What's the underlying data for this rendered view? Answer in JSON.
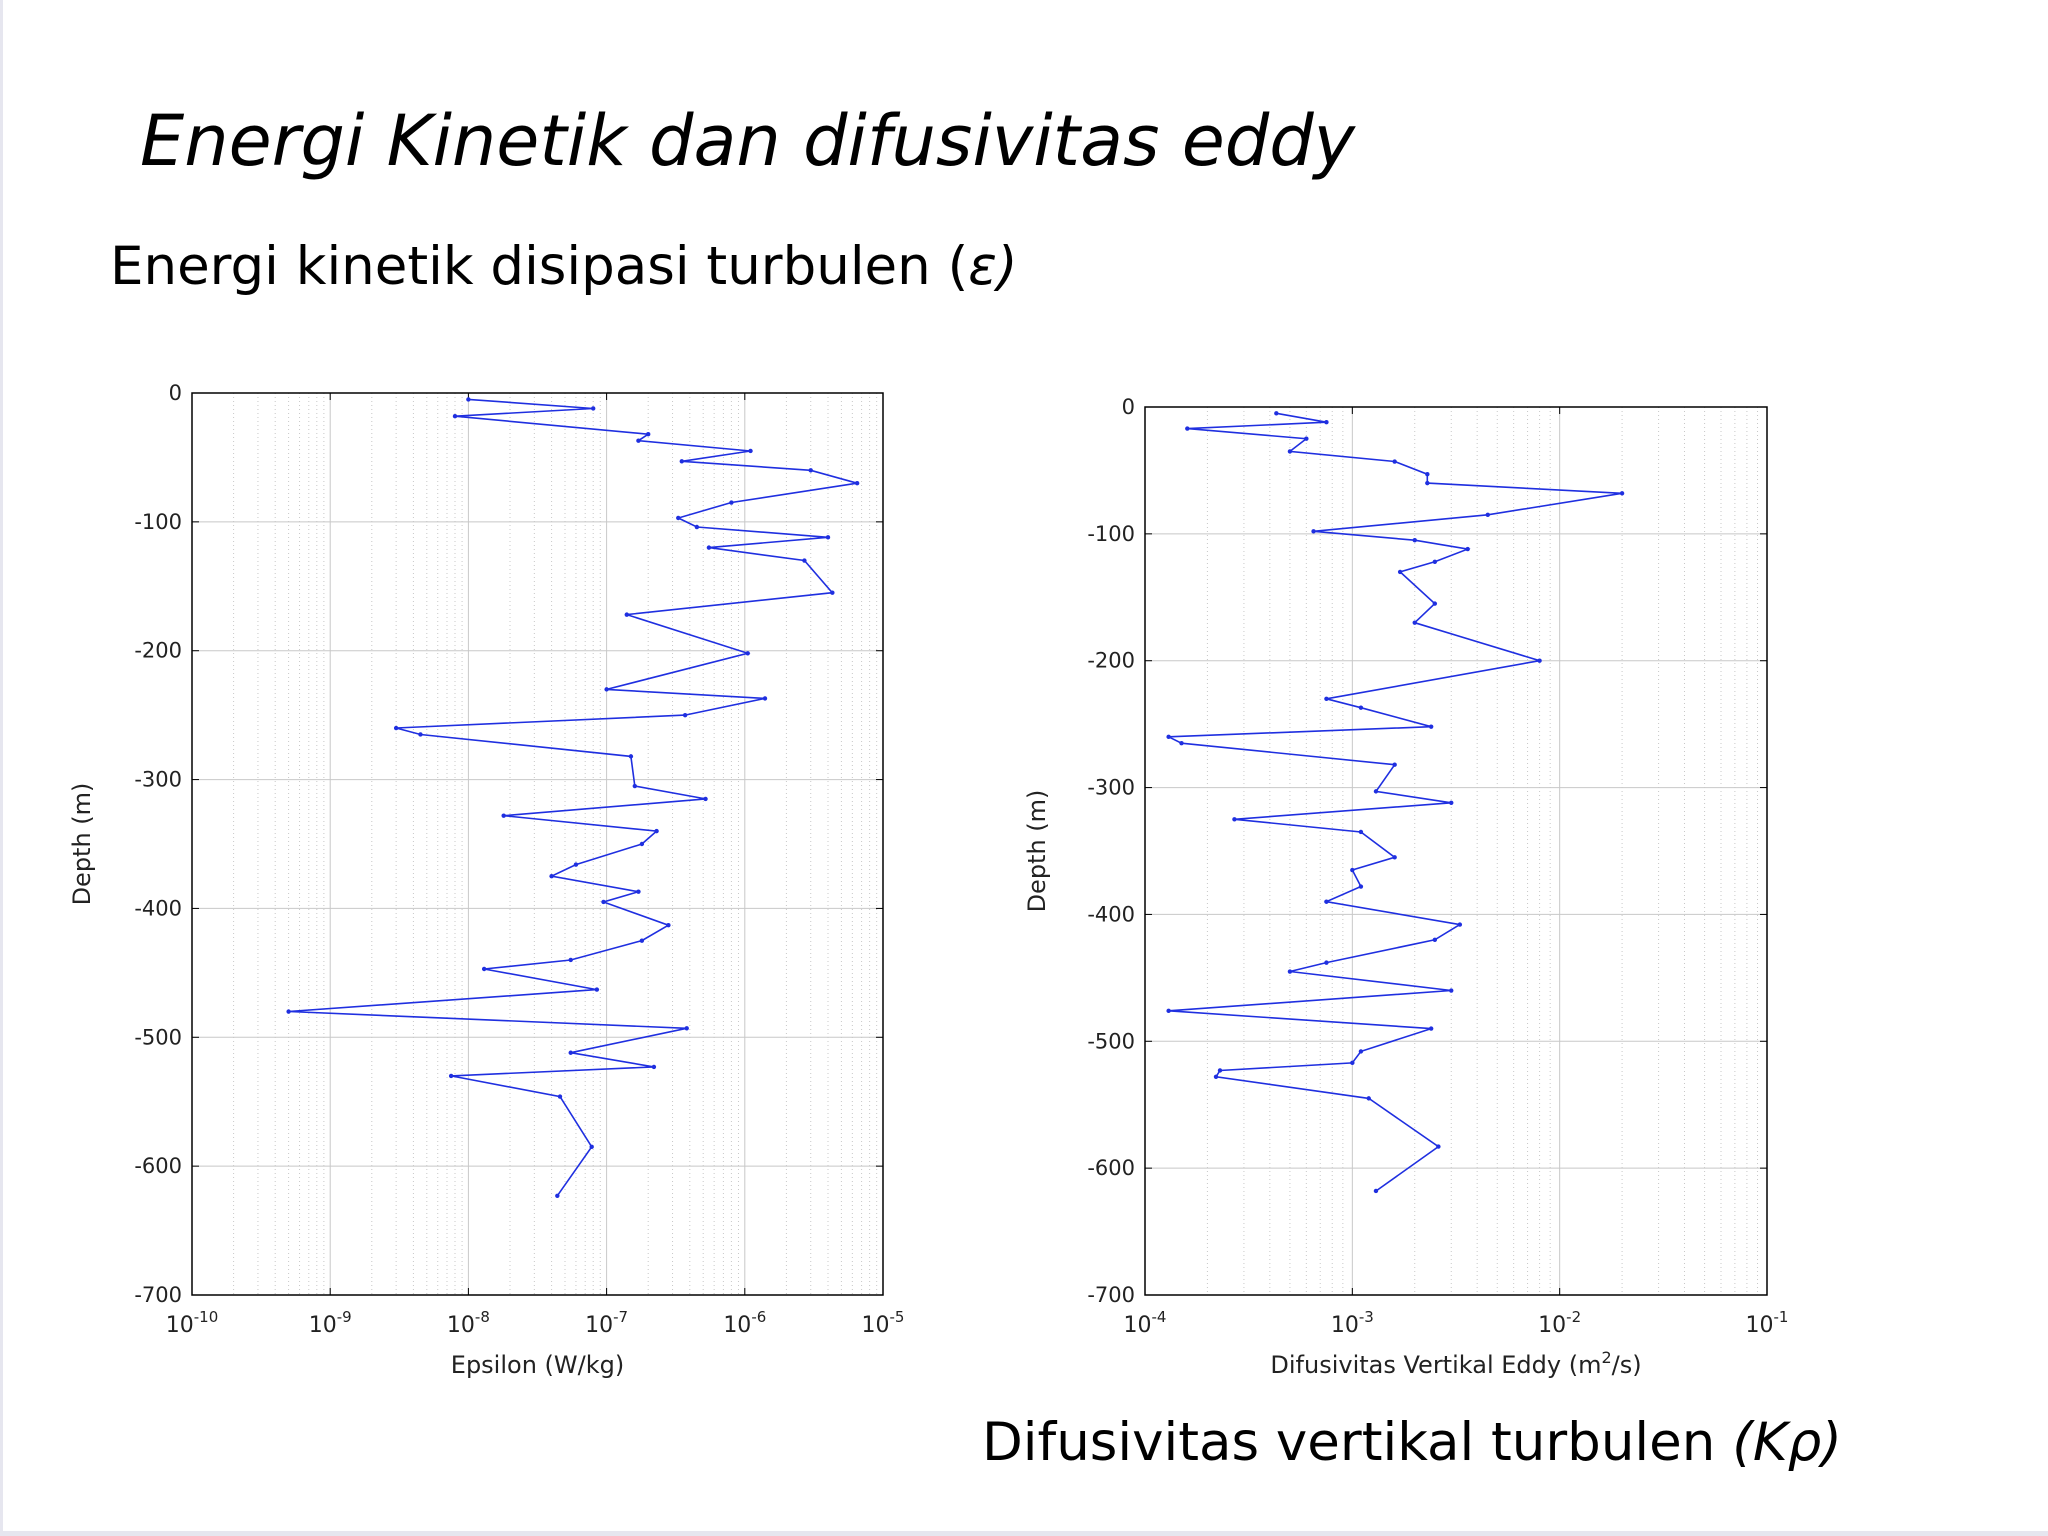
{
  "slide": {
    "title": "Energi Kinetik dan difusivitas eddy",
    "subtitle_text": "Energi kinetik disipasi turbulen (",
    "subtitle_symbol": "ε)",
    "caption_text": "Difusivitas vertikal  turbulen ",
    "caption_symbol": "(Kρ)"
  },
  "colors": {
    "line": "#1f2fe0",
    "axis": "#000000",
    "grid": "#c8c8c8"
  },
  "chart_data": [
    {
      "type": "line",
      "xscale": "log",
      "xlabel": "Epsilon (W/kg)",
      "ylabel": "Depth (m)",
      "xlim": [
        1e-10,
        1e-05
      ],
      "ylim": [
        -700,
        0
      ],
      "xticks": [
        1e-10,
        1e-09,
        1e-08,
        1e-07,
        1e-06,
        1e-05
      ],
      "xtick_labels": [
        {
          "base": "10",
          "exp": "-10"
        },
        {
          "base": "10",
          "exp": "-9"
        },
        {
          "base": "10",
          "exp": "-8"
        },
        {
          "base": "10",
          "exp": "-7"
        },
        {
          "base": "10",
          "exp": "-6"
        },
        {
          "base": "10",
          "exp": "-5"
        }
      ],
      "yticks": [
        0,
        -100,
        -200,
        -300,
        -400,
        -500,
        -600,
        -700
      ],
      "ytick_labels": [
        "0",
        "-100",
        "-200",
        "-300",
        "-400",
        "-500",
        "-600",
        "-700"
      ],
      "grid": true,
      "series": [
        {
          "points": [
            [
              1e-08,
              -5
            ],
            [
              8e-08,
              -12
            ],
            [
              8e-09,
              -18
            ],
            [
              2e-07,
              -32
            ],
            [
              1.7e-07,
              -37
            ],
            [
              1.1e-06,
              -45
            ],
            [
              3.5e-07,
              -53
            ],
            [
              3e-06,
              -60
            ],
            [
              6.5e-06,
              -70
            ],
            [
              8e-07,
              -85
            ],
            [
              3.3e-07,
              -97
            ],
            [
              4.5e-07,
              -104
            ],
            [
              4e-06,
              -112
            ],
            [
              5.5e-07,
              -120
            ],
            [
              2.7e-06,
              -130
            ],
            [
              4.3e-06,
              -155
            ],
            [
              1.4e-07,
              -172
            ],
            [
              1.05e-06,
              -202
            ],
            [
              1e-07,
              -230
            ],
            [
              1.4e-06,
              -237
            ],
            [
              3.7e-07,
              -250
            ],
            [
              3e-09,
              -260
            ],
            [
              4.5e-09,
              -265
            ],
            [
              1.5e-07,
              -282
            ],
            [
              1.6e-07,
              -305
            ],
            [
              5.2e-07,
              -315
            ],
            [
              1.8e-08,
              -328
            ],
            [
              2.3e-07,
              -340
            ],
            [
              1.8e-07,
              -350
            ],
            [
              6e-08,
              -366
            ],
            [
              4e-08,
              -375
            ],
            [
              1.7e-07,
              -387
            ],
            [
              9.5e-08,
              -395
            ],
            [
              2.8e-07,
              -413
            ],
            [
              1.8e-07,
              -425
            ],
            [
              5.5e-08,
              -440
            ],
            [
              1.3e-08,
              -447
            ],
            [
              8.5e-08,
              -463
            ],
            [
              5e-10,
              -480
            ],
            [
              3.8e-07,
              -493
            ],
            [
              5.5e-08,
              -512
            ],
            [
              2.2e-07,
              -523
            ],
            [
              7.5e-09,
              -530
            ],
            [
              4.6e-08,
              -546
            ],
            [
              7.8e-08,
              -585
            ],
            [
              4.4e-08,
              -623
            ]
          ]
        }
      ]
    },
    {
      "type": "line",
      "xscale": "log",
      "xlabel_text": "Difusivitas Vertikal Eddy  (m",
      "xlabel_sup": "2",
      "xlabel_tail": "/s)",
      "ylabel": "Depth (m)",
      "xlim": [
        0.0001,
        0.1
      ],
      "ylim": [
        -700,
        0
      ],
      "xticks": [
        0.0001,
        0.001,
        0.01,
        0.1
      ],
      "xtick_labels": [
        {
          "base": "10",
          "exp": "-4"
        },
        {
          "base": "10",
          "exp": "-3"
        },
        {
          "base": "10",
          "exp": "-2"
        },
        {
          "base": "10",
          "exp": "-1"
        }
      ],
      "yticks": [
        0,
        -100,
        -200,
        -300,
        -400,
        -500,
        -600,
        -700
      ],
      "ytick_labels": [
        "0",
        "-100",
        "-200",
        "-300",
        "-400",
        "-500",
        "-600",
        "-700"
      ],
      "grid": true,
      "series": [
        {
          "points": [
            [
              0.00043,
              -5
            ],
            [
              0.00075,
              -12
            ],
            [
              0.00016,
              -17
            ],
            [
              0.0006,
              -25
            ],
            [
              0.0005,
              -35
            ],
            [
              0.0016,
              -43
            ],
            [
              0.0023,
              -53
            ],
            [
              0.0023,
              -60
            ],
            [
              0.02,
              -68
            ],
            [
              0.0045,
              -85
            ],
            [
              0.00065,
              -98
            ],
            [
              0.002,
              -105
            ],
            [
              0.0036,
              -112
            ],
            [
              0.0025,
              -122
            ],
            [
              0.0017,
              -130
            ],
            [
              0.0025,
              -155
            ],
            [
              0.002,
              -170
            ],
            [
              0.008,
              -200
            ],
            [
              0.00075,
              -230
            ],
            [
              0.0011,
              -237
            ],
            [
              0.0024,
              -252
            ],
            [
              0.00013,
              -260
            ],
            [
              0.00015,
              -265
            ],
            [
              0.0016,
              -282
            ],
            [
              0.0013,
              -303
            ],
            [
              0.003,
              -312
            ],
            [
              0.00027,
              -325
            ],
            [
              0.0011,
              -335
            ],
            [
              0.0016,
              -355
            ],
            [
              0.001,
              -365
            ],
            [
              0.0011,
              -378
            ],
            [
              0.00075,
              -390
            ],
            [
              0.0033,
              -408
            ],
            [
              0.0025,
              -420
            ],
            [
              0.00075,
              -438
            ],
            [
              0.0005,
              -445
            ],
            [
              0.003,
              -460
            ],
            [
              0.00013,
              -476
            ],
            [
              0.0024,
              -490
            ],
            [
              0.0011,
              -508
            ],
            [
              0.001,
              -517
            ],
            [
              0.00023,
              -523
            ],
            [
              0.00022,
              -528
            ],
            [
              0.0012,
              -545
            ],
            [
              0.0026,
              -583
            ],
            [
              0.0013,
              -618
            ]
          ]
        }
      ]
    }
  ]
}
